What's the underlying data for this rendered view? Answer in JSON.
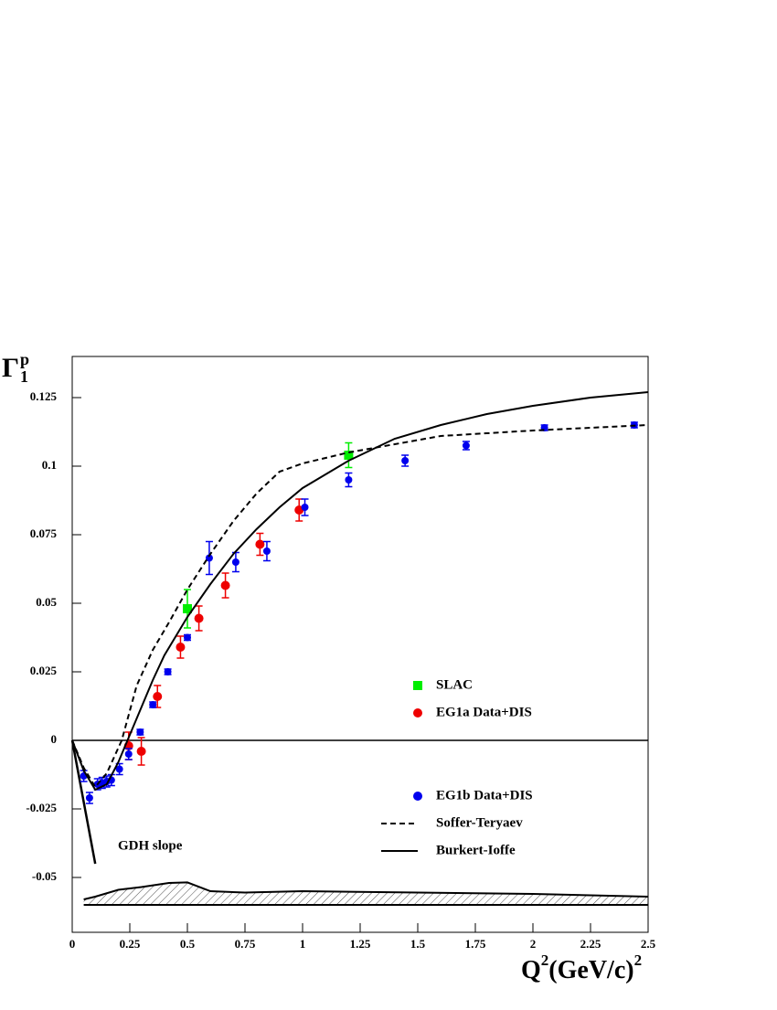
{
  "chart_data": {
    "type": "scatter",
    "xlabel_parts": [
      "Q",
      "2",
      "(GeV/c)",
      "2"
    ],
    "ylabel_parts": [
      "Γ",
      "p",
      "1"
    ],
    "xlim": [
      0,
      2.5
    ],
    "ylim": [
      -0.07,
      0.14
    ],
    "xticks": [
      0,
      0.25,
      0.5,
      0.75,
      1,
      1.25,
      1.5,
      1.75,
      2,
      2.25,
      2.5
    ],
    "yticks": [
      -0.05,
      -0.025,
      0,
      0.025,
      0.05,
      0.075,
      0.1,
      0.125
    ],
    "series": [
      {
        "name": "SLAC",
        "color": "#00ee00",
        "marker": "square",
        "x": [
          0.5,
          1.2
        ],
        "values": [
          0.048,
          0.104
        ],
        "errors": [
          0.007,
          0.0045
        ]
      },
      {
        "name": "EG1a Data+DIS",
        "color": "#ee0000",
        "marker": "circle",
        "x": [
          0.245,
          0.3,
          0.37,
          0.47,
          0.55,
          0.665,
          0.815,
          0.985
        ],
        "values": [
          -0.002,
          -0.004,
          0.016,
          0.034,
          0.0445,
          0.0565,
          0.0715,
          0.084
        ],
        "errors": [
          0.005,
          0.005,
          0.004,
          0.004,
          0.0045,
          0.0045,
          0.004,
          0.004
        ]
      },
      {
        "name": "EG1b Data+DIS",
        "color": "#0000ee",
        "marker": "small-circle",
        "x": [
          0.05,
          0.075,
          0.11,
          0.13,
          0.15,
          0.17,
          0.205,
          0.245,
          0.295,
          0.35,
          0.415,
          0.5,
          0.595,
          0.71,
          0.845,
          1.01,
          1.2,
          1.445,
          1.71,
          2.05,
          2.44
        ],
        "values": [
          -0.013,
          -0.021,
          -0.016,
          -0.0155,
          -0.015,
          -0.0145,
          -0.0105,
          -0.005,
          0.003,
          0.013,
          0.025,
          0.0375,
          0.0665,
          0.065,
          0.069,
          0.085,
          0.095,
          0.102,
          0.1075,
          0.114,
          0.115
        ],
        "errors": [
          0.002,
          0.002,
          0.002,
          0.002,
          0.002,
          0.002,
          0.002,
          0.002,
          0.001,
          0.001,
          0.001,
          0.001,
          0.006,
          0.0035,
          0.0035,
          0.003,
          0.0025,
          0.002,
          0.0015,
          0.001,
          0.001
        ]
      },
      {
        "name": "Soffer-Teryaev",
        "color": "#000000",
        "line": "dashed",
        "x": [
          0,
          0.05,
          0.1,
          0.15,
          0.215,
          0.28,
          0.35,
          0.42,
          0.5,
          0.6,
          0.7,
          0.8,
          0.9,
          1,
          1.2,
          1.4,
          1.6,
          1.8,
          2,
          2.25,
          2.5
        ],
        "values": [
          0,
          -0.01,
          -0.017,
          -0.012,
          0,
          0.02,
          0.033,
          0.043,
          0.055,
          0.068,
          0.08,
          0.09,
          0.098,
          0.101,
          0.105,
          0.108,
          0.111,
          0.112,
          0.113,
          0.114,
          0.115
        ]
      },
      {
        "name": "Burkert-Ioffe",
        "color": "#000000",
        "line": "solid",
        "x": [
          0,
          0.05,
          0.1,
          0.15,
          0.2,
          0.25,
          0.3,
          0.35,
          0.4,
          0.5,
          0.6,
          0.7,
          0.8,
          0.9,
          1,
          1.2,
          1.4,
          1.6,
          1.8,
          2,
          2.25,
          2.5
        ],
        "values": [
          0,
          -0.011,
          -0.018,
          -0.016,
          -0.008,
          0.002,
          0.012,
          0.022,
          0.031,
          0.045,
          0.057,
          0.068,
          0.077,
          0.085,
          0.092,
          0.102,
          0.11,
          0.115,
          0.119,
          0.122,
          0.125,
          0.127
        ]
      }
    ],
    "gdh_slope": {
      "label": "GDH slope",
      "x": [
        0,
        0.1
      ],
      "values": [
        0,
        -0.045
      ]
    },
    "systematic_band": {
      "base": -0.06,
      "x": [
        0.05,
        0.1,
        0.2,
        0.3,
        0.42,
        0.5,
        0.6,
        0.75,
        1,
        1.5,
        2,
        2.5
      ],
      "values": [
        -0.058,
        -0.057,
        -0.0545,
        -0.0535,
        -0.052,
        -0.0518,
        -0.055,
        -0.0555,
        -0.055,
        -0.0555,
        -0.056,
        -0.057
      ]
    }
  }
}
